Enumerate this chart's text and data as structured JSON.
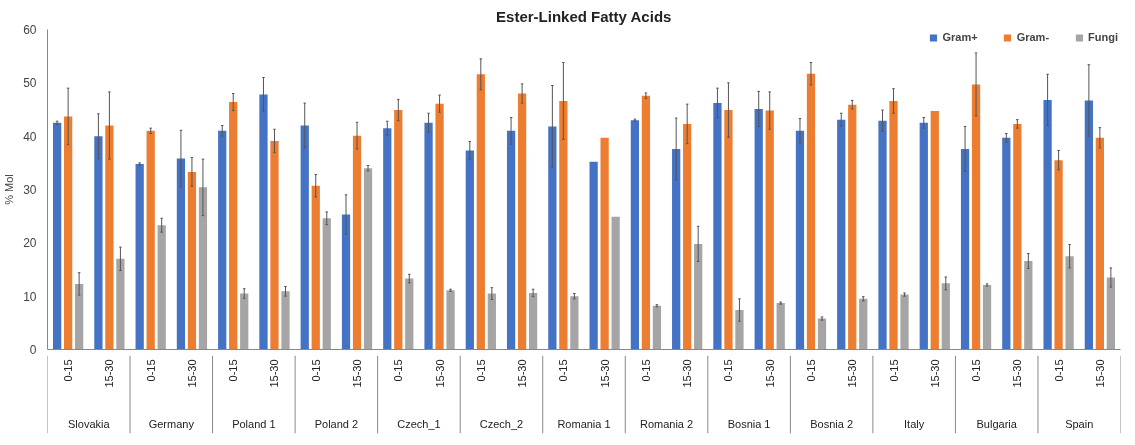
{
  "chart_data": {
    "type": "bar",
    "title": "Ester-Linked Fatty Acids",
    "ylabel": "% Mol",
    "categories": [
      [
        "Slovakia",
        "0-15"
      ],
      [
        null,
        "15-30"
      ],
      [
        "Germany",
        "0-15"
      ],
      [
        null,
        "15-30"
      ],
      [
        "Poland 1",
        "0-15"
      ],
      [
        null,
        "15-30"
      ],
      [
        "Poland 2",
        "0-15"
      ],
      [
        null,
        "15-30"
      ],
      [
        "Czech_1",
        "0-15"
      ],
      [
        null,
        "15-30"
      ],
      [
        "Czech_2",
        "0-15"
      ],
      [
        null,
        "15-30"
      ],
      [
        "Romania 1",
        "0-15"
      ],
      [
        null,
        "15-30"
      ],
      [
        "Romania 2",
        "0-15"
      ],
      [
        null,
        "15-30"
      ],
      [
        "Bosnia 1",
        "0-15"
      ],
      [
        null,
        "15-30"
      ],
      [
        "Bosnia 2",
        "0-15"
      ],
      [
        null,
        "15-30"
      ],
      [
        "Italy",
        "0-15"
      ],
      [
        null,
        "15-30"
      ],
      [
        "Bulgaria",
        "0-15"
      ],
      [
        null,
        "15-30"
      ],
      [
        "Spain",
        "0-15"
      ],
      [
        null,
        "15-30"
      ]
    ],
    "series": [
      {
        "name": "Gram+",
        "color": "#4472c4",
        "values": [
          42.5,
          40,
          34.8,
          35.8,
          41,
          47.8,
          42,
          25.3,
          41.5,
          42.5,
          37.3,
          41,
          41.8,
          35.2,
          43,
          37.6,
          46.2,
          45.1,
          41,
          43.1,
          42.9,
          42.5,
          37.6,
          39.7,
          46.8,
          46.7
        ],
        "errors": [
          0.3,
          4.2,
          0.2,
          5.3,
          1,
          3.2,
          4.2,
          3.7,
          1.3,
          1.8,
          1.7,
          2.5,
          7.7,
          null,
          0.2,
          5.8,
          2.8,
          3.3,
          2.3,
          1.2,
          2,
          1,
          4.2,
          0.8,
          4.8,
          6.7
        ]
      },
      {
        "name": "Gram-",
        "color": "#ed7d31",
        "values": [
          43.7,
          42,
          41,
          33.3,
          46.4,
          39.1,
          30.7,
          40.1,
          44.9,
          46.1,
          51.6,
          48,
          46.6,
          39.7,
          47.6,
          42.3,
          44.9,
          44.8,
          51.7,
          45.9,
          46.6,
          44.7,
          49.7,
          42.3,
          35.5,
          39.7
        ],
        "errors": [
          5.3,
          6.3,
          0.5,
          2.7,
          1.6,
          2.2,
          2.1,
          2.5,
          2,
          1.6,
          2.9,
          1.8,
          7.2,
          null,
          0.5,
          3.7,
          5.1,
          3.5,
          2.1,
          0.8,
          2.3,
          null,
          5.9,
          0.8,
          1.8,
          1.9
        ]
      },
      {
        "name": "Fungi",
        "color": "#a5a5a5",
        "values": [
          12.3,
          17,
          23.3,
          30.4,
          10.5,
          10.9,
          24.6,
          34,
          13.3,
          11.1,
          10.5,
          10.6,
          10,
          24.9,
          8.2,
          19.8,
          7.4,
          8.7,
          5.8,
          9.5,
          10.3,
          12.4,
          12.1,
          16.6,
          17.5,
          13.5
        ],
        "errors": [
          2.1,
          2.2,
          1.3,
          5.3,
          0.9,
          0.9,
          1.2,
          0.5,
          0.8,
          0.2,
          1.1,
          0.7,
          0.5,
          null,
          0.2,
          3.3,
          2.1,
          0.2,
          0.3,
          0.4,
          0.3,
          1.2,
          0.2,
          1.4,
          2.2,
          1.8
        ]
      }
    ],
    "ylim": [
      0,
      60
    ],
    "yticks": [
      0,
      10,
      20,
      30,
      40,
      50,
      60
    ],
    "grid": false,
    "legend": "top right"
  }
}
